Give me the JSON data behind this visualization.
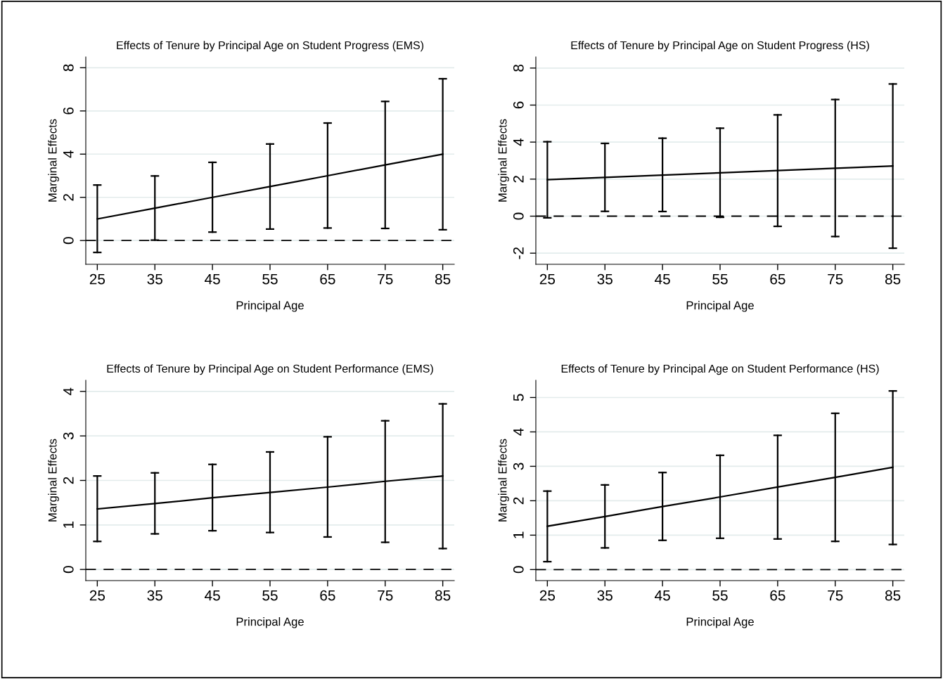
{
  "chart_data": [
    {
      "type": "line",
      "title": "Effects of Tenure by Principal Age on Student Progress (EMS)",
      "xlabel": "Principal Age",
      "ylabel": "Marginal Effects",
      "x": [
        25,
        35,
        45,
        55,
        65,
        75,
        85
      ],
      "xlim": [
        23,
        87
      ],
      "xticks": [
        25,
        35,
        45,
        55,
        65,
        75,
        85
      ],
      "ylim": [
        -1.1,
        8.5
      ],
      "yticks": [
        0,
        2,
        4,
        6,
        8
      ],
      "grid": "y",
      "marker": "none",
      "line_style": "solid",
      "series": [
        {
          "color": "#000000",
          "values": [
            1.0,
            1.5,
            2.0,
            2.5,
            3.0,
            3.5,
            4.0
          ],
          "errors": [
            [
              -0.55,
              2.57
            ],
            [
              0.02,
              2.99
            ],
            [
              0.39,
              3.62
            ],
            [
              0.53,
              4.47
            ],
            [
              0.58,
              5.44
            ],
            [
              0.56,
              6.44
            ],
            [
              0.5,
              7.49
            ]
          ]
        }
      ],
      "ref_lines": [
        {
          "axis": "y",
          "value": 0,
          "color": "#000000",
          "line_style": "dashed"
        }
      ]
    },
    {
      "type": "line",
      "title": "Effects of Tenure by Principal Age on Student Progress (HS)",
      "xlabel": "Principal Age",
      "ylabel": "Marginal Effects",
      "x": [
        25,
        35,
        45,
        55,
        65,
        75,
        85
      ],
      "xlim": [
        23,
        87
      ],
      "xticks": [
        25,
        35,
        45,
        55,
        65,
        75,
        85
      ],
      "ylim": [
        -2.6,
        8.6
      ],
      "yticks": [
        -2,
        0,
        2,
        4,
        6,
        8
      ],
      "grid": "y",
      "marker": "none",
      "line_style": "solid",
      "series": [
        {
          "color": "#000000",
          "values": [
            1.97,
            2.09,
            2.22,
            2.34,
            2.46,
            2.59,
            2.71
          ],
          "errors": [
            [
              -0.09,
              4.02
            ],
            [
              0.26,
              3.93
            ],
            [
              0.25,
              4.21
            ],
            [
              -0.06,
              4.75
            ],
            [
              -0.55,
              5.47
            ],
            [
              -1.1,
              6.3
            ],
            [
              -1.73,
              7.14
            ]
          ]
        }
      ],
      "ref_lines": [
        {
          "axis": "y",
          "value": 0,
          "color": "#000000",
          "line_style": "dashed"
        }
      ]
    },
    {
      "type": "line",
      "title": "Effects of Tenure by Principal Age on Student Performance (EMS)",
      "xlabel": "Principal Age",
      "ylabel": "Marginal Effects",
      "x": [
        25,
        35,
        45,
        55,
        65,
        75,
        85
      ],
      "xlim": [
        23,
        87
      ],
      "xticks": [
        25,
        35,
        45,
        55,
        65,
        75,
        85
      ],
      "ylim": [
        -0.25,
        4.25
      ],
      "yticks": [
        0,
        1,
        2,
        3,
        4
      ],
      "grid": "y",
      "marker": "none",
      "line_style": "solid",
      "series": [
        {
          "color": "#000000",
          "values": [
            1.36,
            1.48,
            1.61,
            1.73,
            1.85,
            1.98,
            2.1
          ],
          "errors": [
            [
              0.63,
              2.1
            ],
            [
              0.8,
              2.17
            ],
            [
              0.87,
              2.36
            ],
            [
              0.83,
              2.64
            ],
            [
              0.73,
              2.98
            ],
            [
              0.61,
              3.34
            ],
            [
              0.47,
              3.72
            ]
          ]
        }
      ],
      "ref_lines": [
        {
          "axis": "y",
          "value": 0,
          "color": "#000000",
          "line_style": "dashed"
        }
      ]
    },
    {
      "type": "line",
      "title": "Effects of Tenure by Principal Age on Student Performance (HS)",
      "xlabel": "Principal Age",
      "ylabel": "Marginal Effects",
      "x": [
        25,
        35,
        45,
        55,
        65,
        75,
        85
      ],
      "xlim": [
        23,
        87
      ],
      "xticks": [
        25,
        35,
        45,
        55,
        65,
        75,
        85
      ],
      "ylim": [
        -0.32,
        5.5
      ],
      "yticks": [
        0,
        1,
        2,
        3,
        4,
        5
      ],
      "grid": "y",
      "marker": "none",
      "line_style": "solid",
      "series": [
        {
          "color": "#000000",
          "values": [
            1.26,
            1.54,
            1.83,
            2.11,
            2.4,
            2.68,
            2.97
          ],
          "errors": [
            [
              0.23,
              2.28
            ],
            [
              0.63,
              2.46
            ],
            [
              0.85,
              2.82
            ],
            [
              0.91,
              3.32
            ],
            [
              0.89,
              3.9
            ],
            [
              0.82,
              4.54
            ],
            [
              0.73,
              5.19
            ]
          ]
        }
      ],
      "ref_lines": [
        {
          "axis": "y",
          "value": 0,
          "color": "#000000",
          "line_style": "dashed"
        }
      ]
    }
  ]
}
